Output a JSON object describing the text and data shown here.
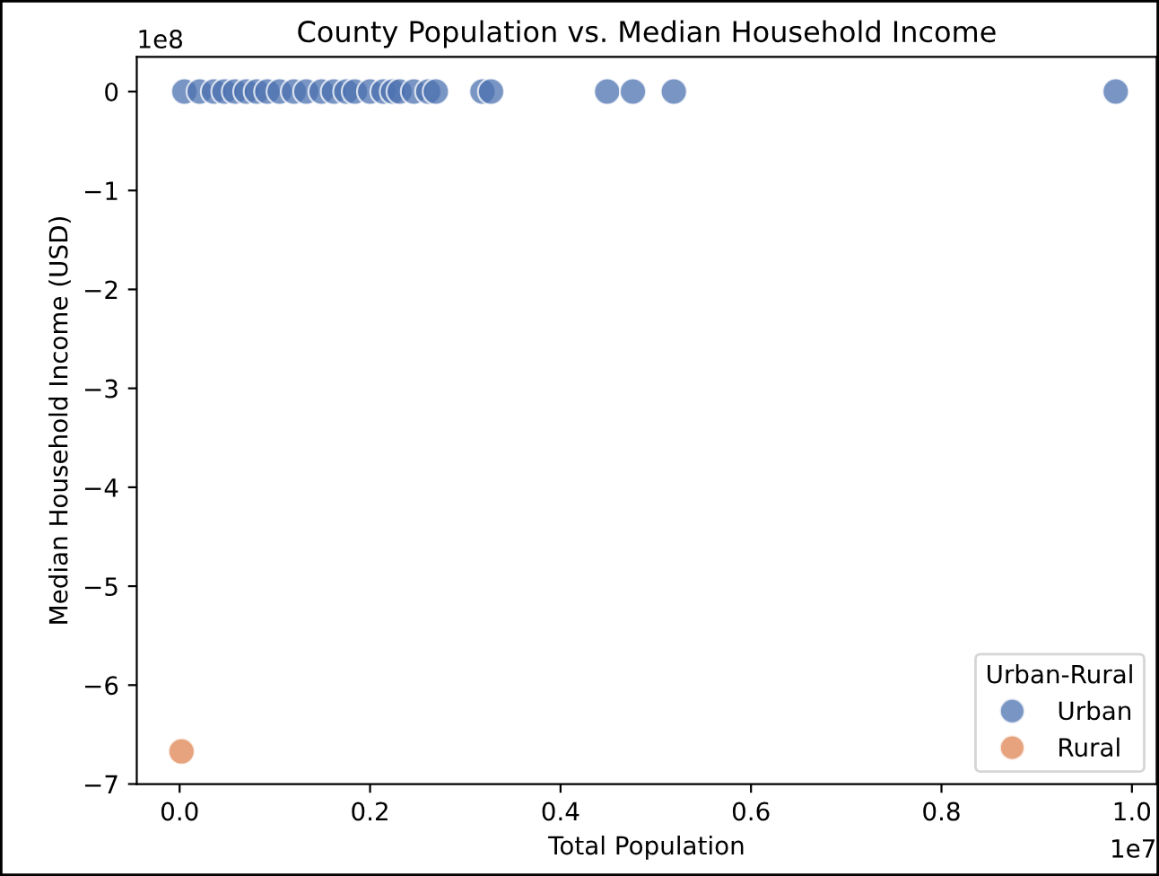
{
  "chart_data": {
    "type": "scatter",
    "title": "County Population vs. Median Household Income",
    "xlabel": "Total Population",
    "ylabel": "Median Household Income (USD)",
    "legend_title": "Urban-Rural",
    "legend": "bottom right",
    "grid": false,
    "marker": "circle",
    "xlim": [
      -0.045,
      1.026
    ],
    "ylim": [
      -7,
      0.35
    ],
    "xticks": [
      {
        "value": 0,
        "label": "0.0"
      },
      0.2,
      0.4,
      0.6,
      0.8,
      {
        "value": 1,
        "label": "1.0"
      }
    ],
    "yticks": [
      0,
      -1,
      -2,
      -3,
      -4,
      -5,
      -6,
      -7
    ],
    "annotations": [
      "1e7",
      "1e8"
    ],
    "series": [
      {
        "name": "Urban",
        "color": "#4c72b0",
        "x": [
          0.005,
          0.021,
          0.036,
          0.047,
          0.058,
          0.07,
          0.081,
          0.092,
          0.105,
          0.12,
          0.133,
          0.149,
          0.162,
          0.175,
          0.184,
          0.2,
          0.214,
          0.224,
          0.231,
          0.246,
          0.261,
          0.269,
          0.318,
          0.327,
          0.449,
          0.476,
          0.519,
          0.983
        ],
        "values": [
          0,
          0,
          0,
          0,
          0,
          0,
          0,
          0,
          0,
          0,
          0,
          0,
          0,
          0,
          0,
          0,
          0,
          0,
          0,
          0,
          0,
          0,
          0,
          0,
          0,
          0,
          0,
          0
        ]
      },
      {
        "name": "Rural",
        "color": "#dd8452",
        "x": [
          0.002
        ],
        "values": [
          -6.67
        ]
      }
    ]
  }
}
